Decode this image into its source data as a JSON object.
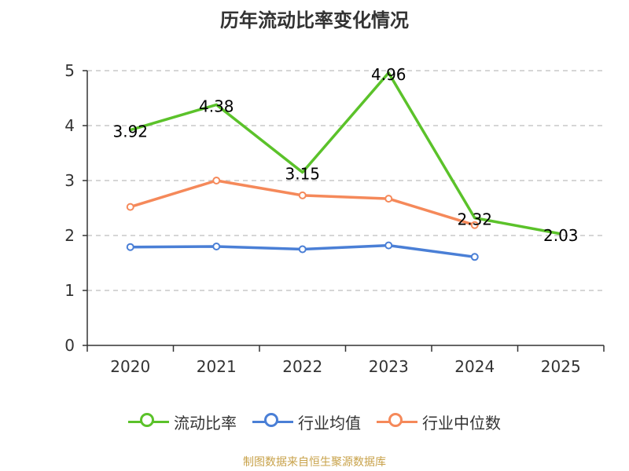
{
  "chart_data": {
    "type": "line",
    "title": "历年流动比率变化情况",
    "categories": [
      "2020",
      "2021",
      "2022",
      "2023",
      "2024",
      "2025"
    ],
    "ylim": [
      0,
      5
    ],
    "yticks": [
      0,
      1,
      2,
      3,
      4,
      5
    ],
    "grid": true,
    "legend_position": "bottom",
    "series": [
      {
        "name": "流动比率",
        "color": "#5bc22a",
        "values": [
          3.92,
          4.38,
          3.15,
          4.96,
          2.32,
          2.03
        ],
        "labels": [
          "3.92",
          "4.38",
          "3.15",
          "4.96",
          "2.32",
          "2.03"
        ],
        "show_labels": true,
        "show_markers": false
      },
      {
        "name": "行业均值",
        "color": "#4a7fd6",
        "values": [
          1.79,
          1.8,
          1.75,
          1.82,
          1.61,
          null
        ],
        "show_labels": false,
        "show_markers": true
      },
      {
        "name": "行业中位数",
        "color": "#f5895a",
        "values": [
          2.52,
          3.0,
          2.73,
          2.67,
          2.19,
          null
        ],
        "show_labels": false,
        "show_markers": true
      }
    ]
  },
  "footer": {
    "source": "制图数据来自恒生聚源数据库"
  }
}
